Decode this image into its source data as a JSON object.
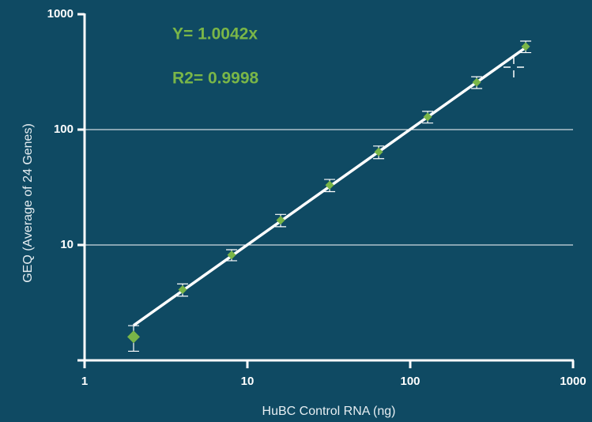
{
  "chart_data": {
    "type": "scatter",
    "x_label": "HuBC Control RNA (ng)",
    "y_label": "GEQ (Average of 24 Genes)",
    "annotations": [
      "Y= 1.0042x",
      "R2= 0.9998"
    ],
    "x": [
      2,
      4,
      8,
      16,
      32,
      64,
      128,
      256,
      512
    ],
    "values": [
      1.6,
      4.1,
      8.2,
      16.4,
      33,
      64,
      129,
      257,
      525
    ],
    "errors": [
      0.4,
      0.5,
      0.9,
      2,
      4,
      8,
      15,
      30,
      60
    ],
    "color": "#7ab648",
    "fit": {
      "x": [
        2,
        530
      ],
      "values": [
        2.0084,
        532.2
      ],
      "color": "#ffffff"
    },
    "xscale": "log",
    "yscale": "log",
    "xlim": [
      1,
      1000
    ],
    "ylim": [
      1,
      1000
    ],
    "xticks": [
      1,
      10,
      100,
      1000
    ],
    "yticks": [
      10,
      100,
      1000
    ],
    "grid": true
  }
}
